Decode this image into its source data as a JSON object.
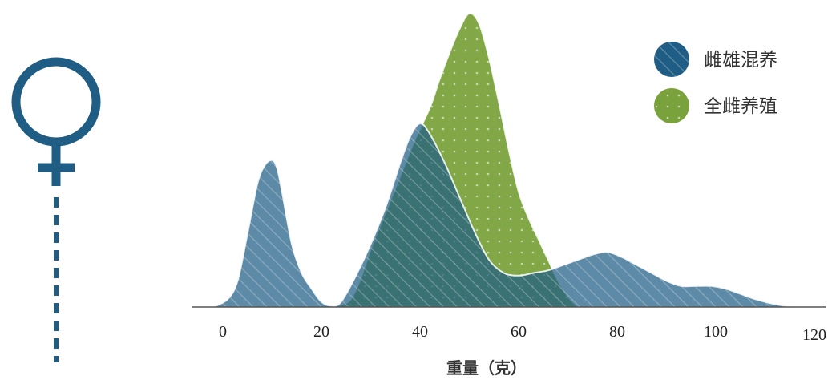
{
  "chart_data": {
    "type": "area",
    "xlabel": "重量（克）",
    "ylabel": "",
    "xlim": [
      0,
      120
    ],
    "x_ticks": [
      0,
      20,
      40,
      60,
      80,
      100,
      120
    ],
    "grid": false,
    "legend_position": "top-right",
    "series": [
      {
        "name": "雌雄混养",
        "color": "#1f5d84",
        "x": [
          -2,
          1,
          3,
          5,
          7,
          8.5,
          10,
          11,
          12,
          14,
          16,
          18,
          20,
          22,
          24,
          27,
          30,
          33,
          36,
          38,
          40,
          42,
          45,
          48,
          51,
          54,
          57,
          60,
          63,
          66,
          69,
          72,
          75,
          78,
          81,
          84,
          87,
          90,
          93,
          96,
          99,
          102,
          105,
          108,
          111,
          114,
          117
        ],
        "y": [
          0,
          0.03,
          0.1,
          0.28,
          0.47,
          0.54,
          0.56,
          0.53,
          0.44,
          0.24,
          0.13,
          0.07,
          0.02,
          0.005,
          0.02,
          0.12,
          0.24,
          0.38,
          0.55,
          0.65,
          0.7,
          0.66,
          0.55,
          0.42,
          0.29,
          0.18,
          0.13,
          0.12,
          0.13,
          0.14,
          0.16,
          0.18,
          0.2,
          0.21,
          0.19,
          0.16,
          0.13,
          0.1,
          0.08,
          0.08,
          0.08,
          0.07,
          0.05,
          0.03,
          0.015,
          0.005,
          0
        ]
      },
      {
        "name": "全雌养殖",
        "color": "#7aa23c",
        "x": [
          22,
          24,
          26,
          28,
          30,
          33,
          36,
          39,
          42,
          44,
          46,
          48,
          50,
          52,
          54,
          56,
          58,
          60,
          62,
          64,
          66,
          68,
          70,
          72
        ],
        "y": [
          0,
          0.008,
          0.03,
          0.11,
          0.22,
          0.36,
          0.5,
          0.64,
          0.76,
          0.87,
          0.97,
          1.06,
          1.12,
          1.08,
          0.95,
          0.78,
          0.6,
          0.44,
          0.34,
          0.26,
          0.18,
          0.1,
          0.04,
          0
        ]
      }
    ]
  },
  "legend": {
    "items": [
      "雌雄混养",
      "全雌养殖"
    ]
  },
  "icon": {
    "name": "female-symbol-icon",
    "color": "#1f5d84"
  }
}
